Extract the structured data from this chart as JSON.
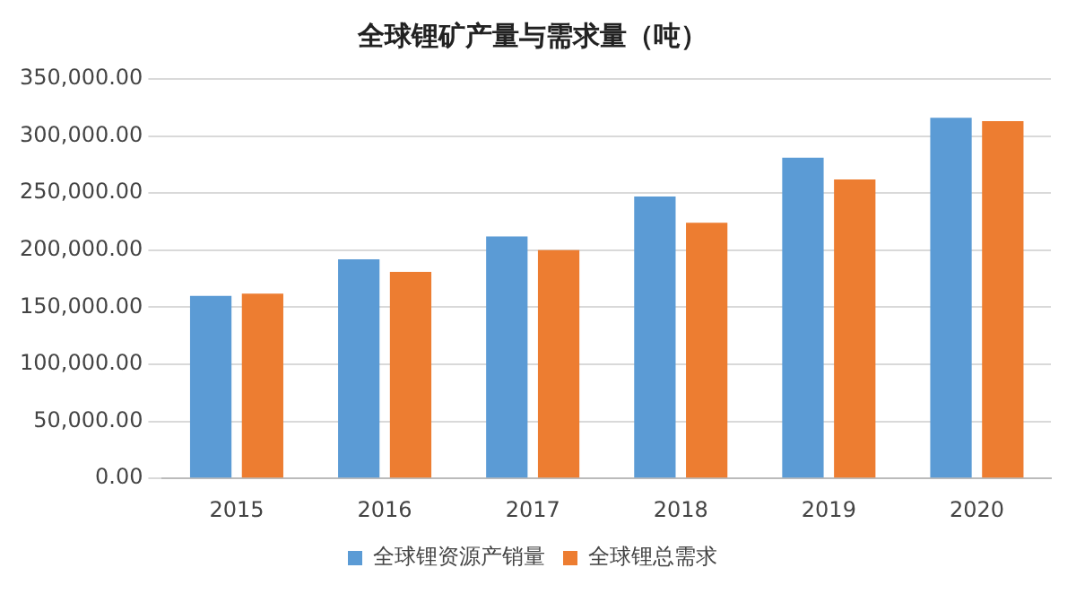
{
  "chart_data": {
    "type": "bar",
    "title": "全球锂矿产量与需求量（吨）",
    "categories": [
      "2015",
      "2016",
      "2017",
      "2018",
      "2019",
      "2020"
    ],
    "series": [
      {
        "name": "全球锂资源产销量",
        "color": "#5b9bd5",
        "values": [
          160000,
          192000,
          212000,
          247000,
          281000,
          316000
        ]
      },
      {
        "name": "全球锂总需求",
        "color": "#ed7d31",
        "values": [
          162000,
          181000,
          200000,
          224000,
          262000,
          313000
        ]
      }
    ],
    "ylim": [
      0,
      350000
    ],
    "yticks": [
      {
        "value": 0,
        "label": "0.00"
      },
      {
        "value": 50000,
        "label": "50,000.00"
      },
      {
        "value": 100000,
        "label": "100,000.00"
      },
      {
        "value": 150000,
        "label": "150,000.00"
      },
      {
        "value": 200000,
        "label": "200,000.00"
      },
      {
        "value": 250000,
        "label": "250,000.00"
      },
      {
        "value": 300000,
        "label": "300,000.00"
      },
      {
        "value": 350000,
        "label": "350,000.00"
      }
    ],
    "grid": "y",
    "legend": "bottom"
  }
}
